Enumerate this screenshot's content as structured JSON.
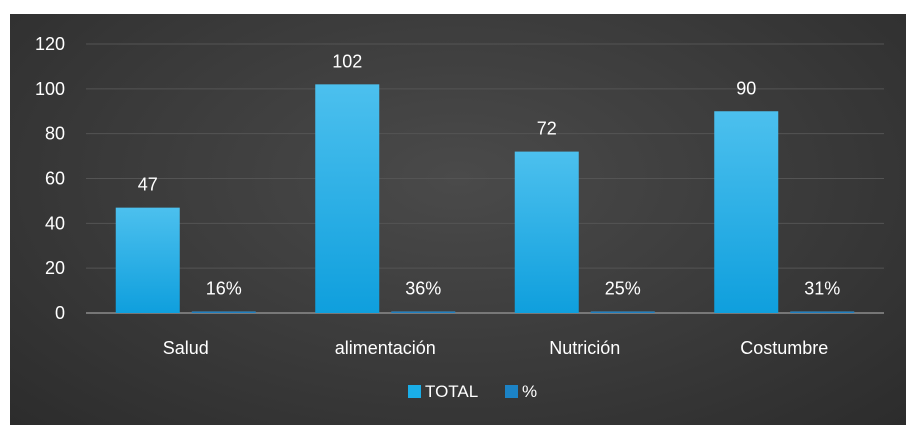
{
  "chart_data": {
    "type": "bar",
    "categories": [
      "Salud",
      "alimentación",
      "Nutrición",
      "Costumbre"
    ],
    "series": [
      {
        "name": "TOTAL",
        "values": [
          47,
          102,
          72,
          90
        ],
        "labels": [
          "47",
          "102",
          "72",
          "90"
        ],
        "color": "#1aaee8"
      },
      {
        "name": "%",
        "values": [
          0.16,
          0.36,
          0.25,
          0.31
        ],
        "labels": [
          "16%",
          "36%",
          "25%",
          "31%"
        ],
        "color": "#1c83c6"
      }
    ],
    "yticks": [
      "0",
      "20",
      "40",
      "60",
      "80",
      "100",
      "120"
    ],
    "ylim": [
      0,
      120
    ],
    "grid": true,
    "legend": "bottom-center",
    "background": "#3a3a3a"
  }
}
